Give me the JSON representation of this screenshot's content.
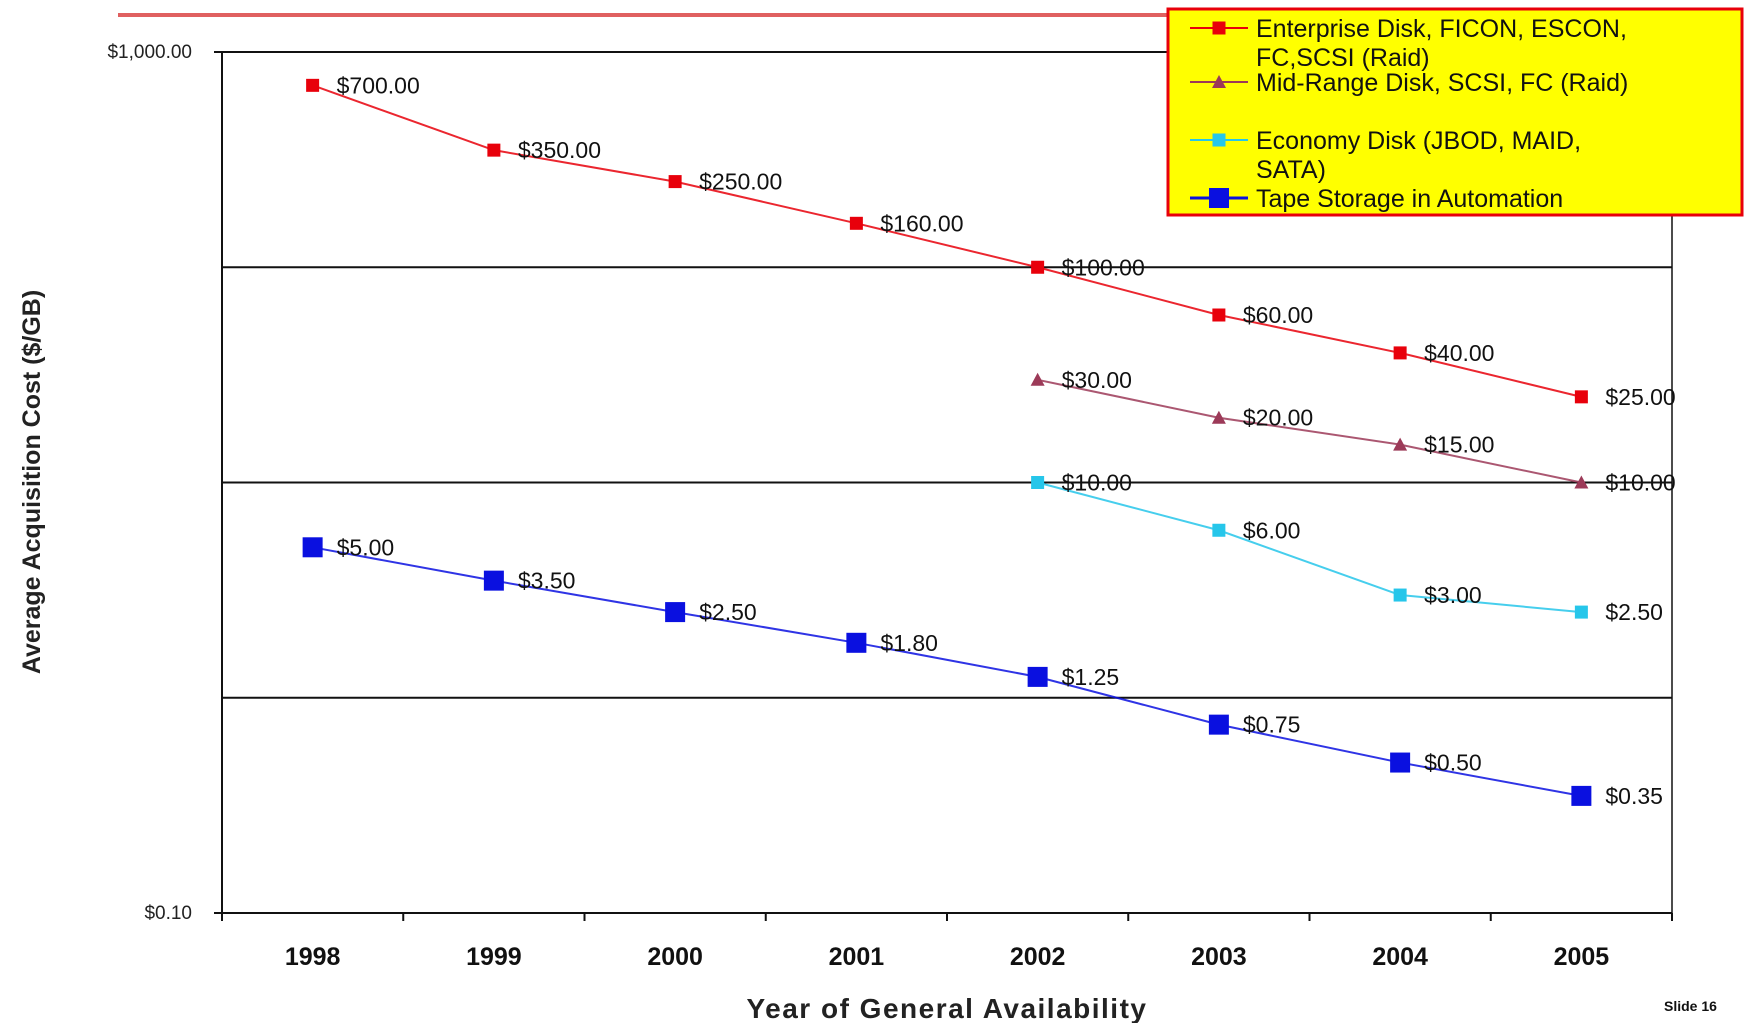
{
  "chart_data": {
    "type": "line",
    "y_scale": "log",
    "ylim": [
      0.1,
      1000
    ],
    "y_ticks": [
      {
        "value": 1000,
        "label": "$1,000.00"
      },
      {
        "value": 0.1,
        "label": "$0.10"
      }
    ],
    "gridlines": [
      100,
      10,
      1
    ],
    "categories": [
      "1998",
      "1999",
      "2000",
      "2001",
      "2002",
      "2003",
      "2004",
      "2005"
    ],
    "xlabel": "Year of General Availability",
    "ylabel": "Average Acquisition Cost ($/GB)",
    "footer": "Slide 16",
    "legend_position": "top-right",
    "series": [
      {
        "name": "Enterprise Disk, FICON, ESCON, FC,SCSI (Raid)",
        "legend_lines": [
          "Enterprise Disk, FICON, ESCON,",
          "FC,SCSI (Raid)"
        ],
        "color": "#e8000b",
        "marker": "square-small",
        "x": [
          "1998",
          "1999",
          "2000",
          "2001",
          "2002",
          "2003",
          "2004",
          "2005"
        ],
        "values": [
          700,
          350,
          250,
          160,
          100,
          60,
          40,
          25
        ],
        "labels": [
          "$700.00",
          "$350.00",
          "$250.00",
          "$160.00",
          "$100.00",
          "$60.00",
          "$40.00",
          "$25.00"
        ]
      },
      {
        "name": "Mid-Range Disk, SCSI, FC (Raid)",
        "legend_lines": [
          "Mid-Range Disk, SCSI, FC (Raid)"
        ],
        "color": "#9c3a58",
        "marker": "triangle",
        "x": [
          "2002",
          "2003",
          "2004",
          "2005"
        ],
        "values": [
          30,
          20,
          15,
          10
        ],
        "labels": [
          "$30.00",
          "$20.00",
          "$15.00",
          "$10.00"
        ]
      },
      {
        "name": "Economy Disk (JBOD, MAID, SATA)",
        "legend_lines": [
          "Economy Disk (JBOD, MAID,",
          "SATA)"
        ],
        "color": "#26c6ea",
        "marker": "square-small",
        "x": [
          "2002",
          "2003",
          "2004",
          "2005"
        ],
        "values": [
          10,
          6,
          3,
          2.5
        ],
        "labels": [
          "$10.00",
          "$6.00",
          "$3.00",
          "$2.50"
        ]
      },
      {
        "name": "Tape Storage in Automation",
        "legend_lines": [
          "Tape Storage in Automation"
        ],
        "color": "#0a10e0",
        "marker": "square-large",
        "x": [
          "1998",
          "1999",
          "2000",
          "2001",
          "2002",
          "2003",
          "2004",
          "2005"
        ],
        "values": [
          5,
          3.5,
          2.5,
          1.8,
          1.25,
          0.75,
          0.5,
          0.35
        ],
        "labels": [
          "$5.00",
          "$3.50",
          "$2.50",
          "$1.80",
          "$1.25",
          "$0.75",
          "$0.50",
          "$0.35"
        ]
      }
    ]
  }
}
